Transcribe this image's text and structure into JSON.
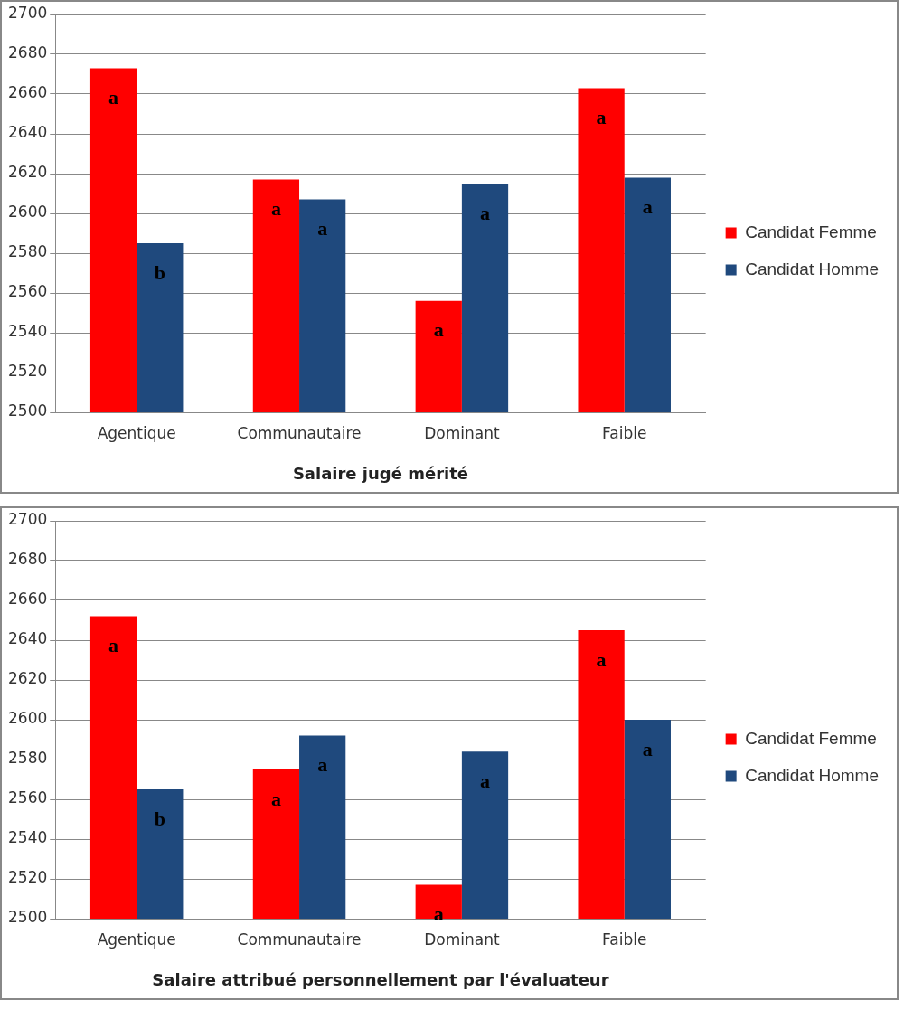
{
  "chart_data": [
    {
      "type": "bar",
      "xlabel": "Salaire jugé mérité",
      "categories": [
        "Agentique",
        "Communautaire",
        "Dominant",
        "Faible"
      ],
      "series": [
        {
          "name": "Candidat Femme",
          "color": "#ff0000",
          "values": [
            2673,
            2617,
            2556,
            2663
          ],
          "value_labels": [
            "a",
            "a",
            "a",
            "a"
          ]
        },
        {
          "name": "Candidat Homme",
          "color": "#1f497d",
          "values": [
            2585,
            2607,
            2615,
            2618
          ],
          "value_labels": [
            "b",
            "a",
            "a",
            "a"
          ]
        }
      ],
      "ylim": [
        2500,
        2700
      ],
      "yticks": [
        2500,
        2520,
        2540,
        2560,
        2580,
        2600,
        2620,
        2640,
        2660,
        2680,
        2700
      ],
      "grid": "y",
      "legend": "right"
    },
    {
      "type": "bar",
      "xlabel": "Salaire attribué personnellement par l'évaluateur",
      "categories": [
        "Agentique",
        "Communautaire",
        "Dominant",
        "Faible"
      ],
      "series": [
        {
          "name": "Candidat Femme",
          "color": "#ff0000",
          "values": [
            2652,
            2575,
            2517,
            2645
          ],
          "value_labels": [
            "a",
            "a",
            "a",
            "a"
          ]
        },
        {
          "name": "Candidat Homme",
          "color": "#1f497d",
          "values": [
            2565,
            2592,
            2584,
            2600
          ],
          "value_labels": [
            "b",
            "a",
            "a",
            "a"
          ]
        }
      ],
      "ylim": [
        2500,
        2700
      ],
      "yticks": [
        2500,
        2520,
        2540,
        2560,
        2580,
        2600,
        2620,
        2640,
        2660,
        2680,
        2700
      ],
      "grid": "y",
      "legend": "right"
    }
  ]
}
